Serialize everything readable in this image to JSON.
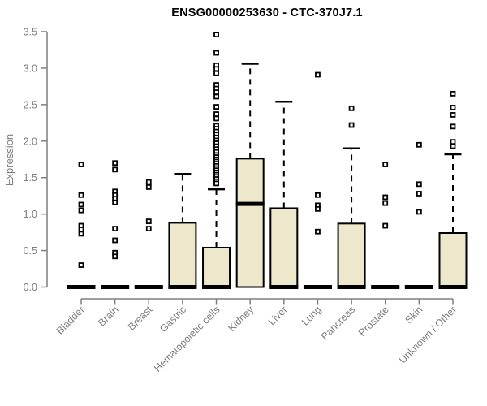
{
  "chart_data": {
    "type": "boxplot",
    "title": "ENSG00000253630 - CTC-370J7.1",
    "ylabel": "Expression",
    "xlabel": "",
    "ylim": [
      0,
      3.5
    ],
    "grid": false,
    "legend": null,
    "yticks": [
      {
        "value": 0.0,
        "label": "0.0"
      },
      {
        "value": 0.5,
        "label": "0.5"
      },
      {
        "value": 1.0,
        "label": "1.0"
      },
      {
        "value": 1.5,
        "label": "1.5"
      },
      {
        "value": 2.0,
        "label": "2.0"
      },
      {
        "value": 2.5,
        "label": "2.5"
      },
      {
        "value": 3.0,
        "label": "3.0"
      },
      {
        "value": 3.5,
        "label": "3.5"
      }
    ],
    "categories": [
      "Bladder",
      "Brain",
      "Breast",
      "Gastric",
      "Hematopoietic cells",
      "Kidney",
      "Liver",
      "Lung",
      "Pancreas",
      "Prostate",
      "Skin",
      "Unknown / Other"
    ],
    "series": [
      {
        "name": "Bladder",
        "q1": 0,
        "median": 0,
        "q3": 0,
        "whisker_low": 0,
        "whisker_high": 0,
        "outliers": [
          1.68,
          1.26,
          1.13,
          1.05,
          0.84,
          0.79,
          0.73,
          0.3
        ]
      },
      {
        "name": "Brain",
        "q1": 0,
        "median": 0,
        "q3": 0,
        "whisker_low": 0,
        "whisker_high": 0,
        "outliers": [
          1.7,
          1.61,
          1.31,
          1.26,
          1.21,
          1.16,
          0.8,
          0.64,
          0.47,
          0.42
        ]
      },
      {
        "name": "Breast",
        "q1": 0,
        "median": 0,
        "q3": 0,
        "whisker_low": 0,
        "whisker_high": 0,
        "outliers": [
          1.44,
          1.37,
          0.9,
          0.8
        ]
      },
      {
        "name": "Gastric",
        "q1": 0,
        "median": 0,
        "q3": 0.88,
        "whisker_low": 0,
        "whisker_high": 1.55,
        "outliers": []
      },
      {
        "name": "Hematopoietic cells",
        "q1": 0,
        "median": 0,
        "q3": 0.54,
        "whisker_low": 0,
        "whisker_high": 1.34,
        "outliers": [
          3.46,
          3.21,
          3.04,
          2.99,
          2.93,
          2.77,
          2.72,
          2.67,
          2.61,
          2.47,
          2.37,
          2.31,
          2.21,
          2.17,
          2.13,
          2.09,
          2.05,
          2.01,
          1.97,
          1.93,
          1.89,
          1.85,
          1.81,
          1.78,
          1.75,
          1.72,
          1.69,
          1.66,
          1.63,
          1.6,
          1.57,
          1.54,
          1.51,
          1.48,
          1.45,
          1.42
        ]
      },
      {
        "name": "Kidney",
        "q1": 0,
        "median": 1.14,
        "q3": 1.76,
        "whisker_low": 0,
        "whisker_high": 3.06,
        "outliers": []
      },
      {
        "name": "Liver",
        "q1": 0,
        "median": 0,
        "q3": 1.08,
        "whisker_low": 0,
        "whisker_high": 2.54,
        "outliers": []
      },
      {
        "name": "Lung",
        "q1": 0,
        "median": 0,
        "q3": 0,
        "whisker_low": 0,
        "whisker_high": 0,
        "outliers": [
          2.91,
          1.26,
          1.12,
          1.07,
          0.76
        ]
      },
      {
        "name": "Pancreas",
        "q1": 0,
        "median": 0,
        "q3": 0.87,
        "whisker_low": 0,
        "whisker_high": 1.9,
        "outliers": [
          2.45,
          2.22
        ]
      },
      {
        "name": "Prostate",
        "q1": 0,
        "median": 0,
        "q3": 0,
        "whisker_low": 0,
        "whisker_high": 0,
        "outliers": [
          1.68,
          1.23,
          1.15,
          0.84
        ]
      },
      {
        "name": "Skin",
        "q1": 0,
        "median": 0,
        "q3": 0,
        "whisker_low": 0,
        "whisker_high": 0,
        "outliers": [
          1.95,
          1.41,
          1.28,
          1.03
        ]
      },
      {
        "name": "Unknown / Other",
        "q1": 0,
        "median": 0,
        "q3": 0.74,
        "whisker_low": 0,
        "whisker_high": 1.82,
        "outliers": [
          2.65,
          2.46,
          2.36,
          2.2,
          1.99,
          1.93
        ]
      }
    ],
    "colors": {
      "box_fill": "#EDE7CC",
      "box_stroke": "#000000",
      "median": "#000000",
      "whisker": "#000000",
      "outlier_fill": "#FFFFFF",
      "outlier_stroke": "#000000",
      "axis": "#7E7E7E",
      "tick_label": "#7E7E7E",
      "title": "#000000",
      "background": "#FFFFFF"
    }
  }
}
